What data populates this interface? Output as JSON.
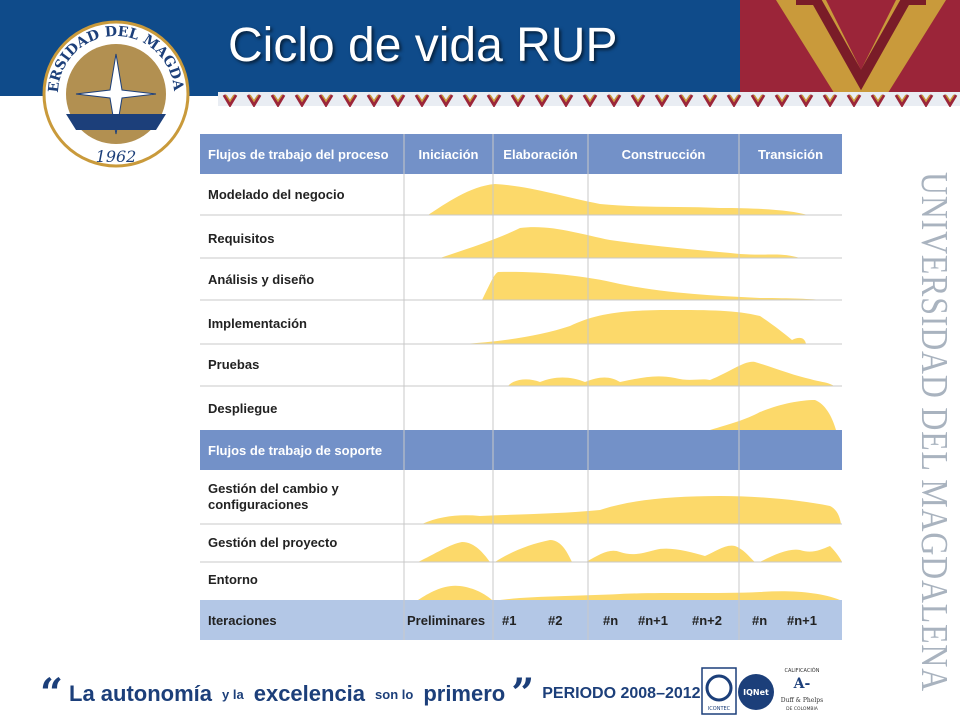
{
  "slide": {
    "title": "Ciclo de vida RUP"
  },
  "seal": {
    "text_top": "UNIVERSIDAD DEL MAGDALENA",
    "year": "1962"
  },
  "watermark": {
    "text": "UNIVERSIDAD DEL MAGDALENA"
  },
  "table": {
    "header": {
      "flows_label": "Flujos de trabajo del proceso",
      "phases": [
        "Iniciación",
        "Elaboración",
        "Construcción",
        "Transición"
      ]
    },
    "process_rows": [
      "Modelado del negocio",
      "Requisitos",
      "Análisis y diseño",
      "Implementación",
      "Pruebas",
      "Despliegue"
    ],
    "support_label": "Flujos de trabajo de soporte",
    "support_rows": [
      "Gestión del cambio y configuraciones",
      "Gestión del proyecto",
      "Entorno"
    ],
    "iterations_label": "Iteraciones",
    "iterations": [
      "Preliminares",
      "#1",
      "#2",
      "#n",
      "#n+1",
      "#n+2",
      "#n",
      "#n+1"
    ]
  },
  "footer": {
    "open_quote": "“",
    "part1": "La autonomía",
    "connector1": "y la",
    "part2": "excelencia",
    "connector2": "son lo",
    "part3": "primero",
    "close_quote": "”",
    "period": "PERIODO 2008–2012"
  },
  "logos": {
    "rating_label": "CALIFICACIÓN",
    "rating": "A-",
    "rating_agency": "Duff & Phelps DE COLOMBIA",
    "cert": "ICONTEC",
    "iqnet": "IQNet"
  },
  "colors": {
    "banner_blue": "#0f4b8a",
    "banner_red": "#9b2539",
    "gold": "#c99a3b",
    "header_blue": "#7391c8",
    "iter_blue": "#b3c7e6",
    "hump_yellow": "#fcd96a",
    "text_navy": "#1c3f7a"
  }
}
